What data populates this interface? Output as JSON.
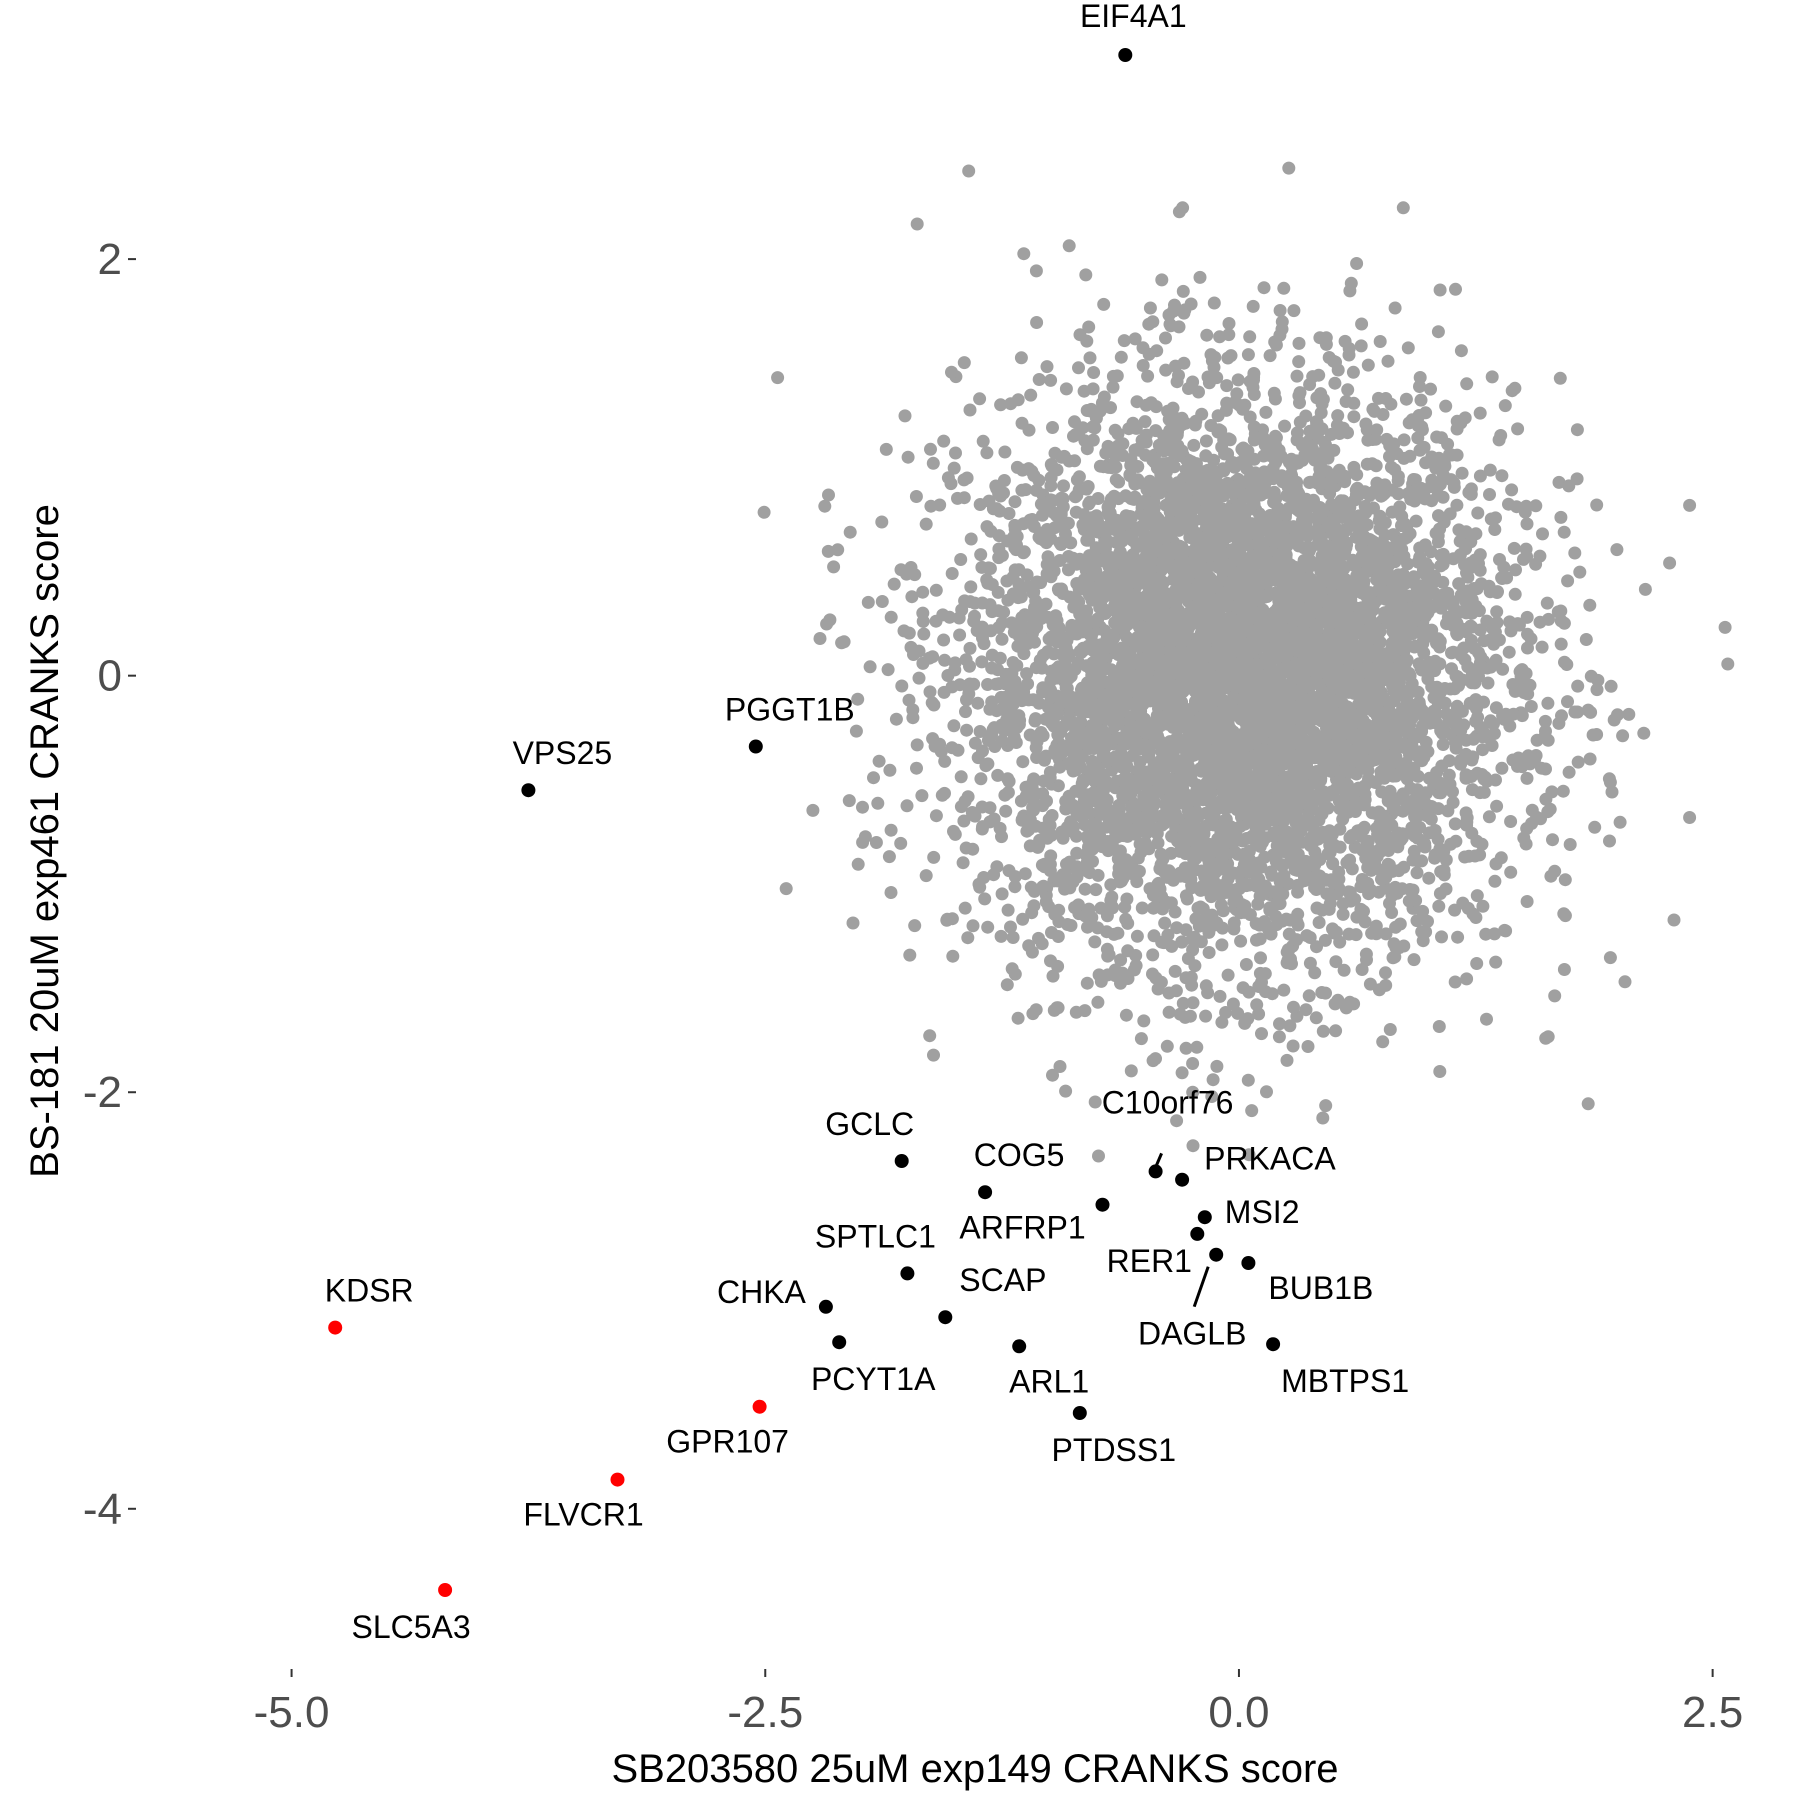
{
  "chart_data": {
    "type": "scatter",
    "title": "",
    "xlabel": "SB203580 25uM exp149 CRANKS score",
    "ylabel": "BS-181 20uM exp461 CRANKS score",
    "xlim": [
      -5.8,
      2.75
    ],
    "ylim": [
      -4.75,
      3.1
    ],
    "x_ticks": [
      -5.0,
      -2.5,
      0.0,
      2.5
    ],
    "x_tick_labels": [
      "-5.0",
      "-2.5",
      "0.0",
      "2.5"
    ],
    "y_ticks": [
      -4,
      -2,
      0,
      2
    ],
    "y_tick_labels": [
      "-4",
      "-2",
      "0",
      "2"
    ],
    "grid": false,
    "legend": "none",
    "colors": {
      "background_points": "#a0a0a0",
      "highlight_black": "#000000",
      "highlight_red": "#ff0000"
    },
    "background_cloud": {
      "description_color": "gray",
      "approx_count": 6000,
      "center": [
        0.0,
        0.0
      ],
      "sd": [
        0.72,
        0.68
      ]
    },
    "labeled_points": [
      {
        "label": "EIF4A1",
        "x": -0.6,
        "y": 2.98,
        "color": "black"
      },
      {
        "label": "PGGT1B",
        "x": -2.55,
        "y": -0.34,
        "color": "black"
      },
      {
        "label": "VPS25",
        "x": -3.75,
        "y": -0.55,
        "color": "black"
      },
      {
        "label": "GCLC",
        "x": -1.78,
        "y": -2.33,
        "color": "black"
      },
      {
        "label": "COG5",
        "x": -1.34,
        "y": -2.48,
        "color": "black"
      },
      {
        "label": "ARFRP1",
        "x": -0.72,
        "y": -2.54,
        "color": "black"
      },
      {
        "label": "C10orf76",
        "x": -0.44,
        "y": -2.38,
        "color": "black"
      },
      {
        "label": "PRKACA",
        "x": -0.3,
        "y": -2.42,
        "color": "black"
      },
      {
        "label": "MSI2",
        "x": -0.18,
        "y": -2.6,
        "color": "black"
      },
      {
        "label": "RER1",
        "x": -0.22,
        "y": -2.68,
        "color": "black"
      },
      {
        "label": "DAGLB",
        "x": -0.12,
        "y": -2.78,
        "color": "black"
      },
      {
        "label": "BUB1B",
        "x": 0.05,
        "y": -2.82,
        "color": "black"
      },
      {
        "label": "MBTPS1",
        "x": 0.18,
        "y": -3.21,
        "color": "black"
      },
      {
        "label": "SPTLC1",
        "x": -1.75,
        "y": -2.87,
        "color": "black"
      },
      {
        "label": "SCAP",
        "x": -1.55,
        "y": -3.08,
        "color": "black"
      },
      {
        "label": "CHKA",
        "x": -2.18,
        "y": -3.03,
        "color": "black"
      },
      {
        "label": "PCYT1A",
        "x": -2.11,
        "y": -3.2,
        "color": "black"
      },
      {
        "label": "ARL1",
        "x": -1.16,
        "y": -3.22,
        "color": "black"
      },
      {
        "label": "PTDSS1",
        "x": -0.84,
        "y": -3.54,
        "color": "black"
      },
      {
        "label": "KDSR",
        "x": -4.77,
        "y": -3.13,
        "color": "red"
      },
      {
        "label": "GPR107",
        "x": -2.53,
        "y": -3.51,
        "color": "red"
      },
      {
        "label": "FLVCR1",
        "x": -3.28,
        "y": -3.86,
        "color": "red"
      },
      {
        "label": "SLC5A3",
        "x": -4.19,
        "y": -4.39,
        "color": "red"
      }
    ]
  }
}
